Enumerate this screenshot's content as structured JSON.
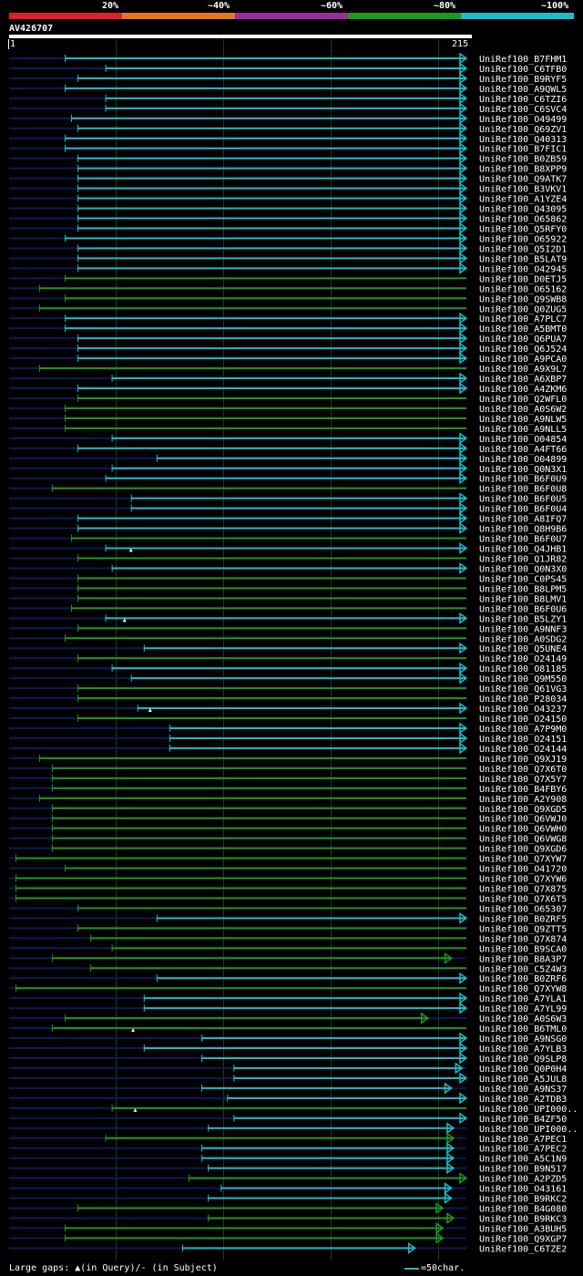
{
  "legend": {
    "labels": [
      "20%",
      "~40%",
      "~60%",
      "~80%",
      "~100%"
    ],
    "colors": [
      "#e2202c",
      "#e6761c",
      "#9a2d9c",
      "#1c9a1c",
      "#1cbcc8"
    ]
  },
  "query": {
    "name": "AV426707",
    "start": "1",
    "end": "215",
    "length": 215
  },
  "footer": {
    "gaps_text": "Large gaps: ▲(in Query)/- (in Subject)",
    "scale_text": "=50char."
  },
  "colors": {
    "cyan": "#1cbcc8",
    "green": "#1c9a1c",
    "dark": "#0d1a5a"
  },
  "hits": [
    {
      "label": "UniRef100_B7FHM1",
      "start": 27,
      "end": 215,
      "color": "cyan",
      "arrow": "right"
    },
    {
      "label": "UniRef100_C6TFB0",
      "start": 46,
      "end": 215,
      "color": "cyan",
      "arrow": "right"
    },
    {
      "label": "UniRef100_B9RYF5",
      "start": 33,
      "end": 215,
      "color": "cyan",
      "arrow": "right"
    },
    {
      "label": "UniRef100_A9QWL5",
      "start": 27,
      "end": 215,
      "color": "cyan",
      "arrow": "right"
    },
    {
      "label": "UniRef100_C6TZI6",
      "start": 46,
      "end": 215,
      "color": "cyan",
      "arrow": "right"
    },
    {
      "label": "UniRef100_C6SVC4",
      "start": 46,
      "end": 215,
      "color": "cyan",
      "arrow": "right"
    },
    {
      "label": "UniRef100_O49499",
      "start": 30,
      "end": 215,
      "color": "cyan",
      "arrow": "right"
    },
    {
      "label": "UniRef100_Q69ZV1",
      "start": 33,
      "end": 215,
      "color": "cyan",
      "arrow": "right"
    },
    {
      "label": "UniRef100_Q40313",
      "start": 27,
      "end": 215,
      "color": "cyan",
      "arrow": "right"
    },
    {
      "label": "UniRef100_B7FIC1",
      "start": 27,
      "end": 215,
      "color": "cyan",
      "arrow": "right"
    },
    {
      "label": "UniRef100_B0ZB59",
      "start": 33,
      "end": 215,
      "color": "cyan",
      "arrow": "right"
    },
    {
      "label": "UniRef100_B8XPP9",
      "start": 33,
      "end": 215,
      "color": "cyan",
      "arrow": "right"
    },
    {
      "label": "UniRef100_Q9ATK7",
      "start": 33,
      "end": 215,
      "color": "cyan",
      "arrow": "right"
    },
    {
      "label": "UniRef100_B3VKV1",
      "start": 33,
      "end": 215,
      "color": "cyan",
      "arrow": "right"
    },
    {
      "label": "UniRef100_A1YZE4",
      "start": 33,
      "end": 215,
      "color": "cyan",
      "arrow": "right"
    },
    {
      "label": "UniRef100_Q43095",
      "start": 33,
      "end": 215,
      "color": "cyan",
      "arrow": "right"
    },
    {
      "label": "UniRef100_O65862",
      "start": 33,
      "end": 215,
      "color": "cyan",
      "arrow": "right"
    },
    {
      "label": "UniRef100_Q5RFY0",
      "start": 33,
      "end": 215,
      "color": "cyan",
      "arrow": "right"
    },
    {
      "label": "UniRef100_O65922",
      "start": 27,
      "end": 215,
      "color": "cyan",
      "arrow": "right"
    },
    {
      "label": "UniRef100_Q5I2D1",
      "start": 33,
      "end": 215,
      "color": "cyan",
      "arrow": "right"
    },
    {
      "label": "UniRef100_B5LAT9",
      "start": 33,
      "end": 215,
      "color": "cyan",
      "arrow": "right"
    },
    {
      "label": "UniRef100_O42945",
      "start": 33,
      "end": 215,
      "color": "cyan",
      "arrow": "right"
    },
    {
      "label": "UniRef100_D0ETJ5",
      "start": 27,
      "end": 215,
      "color": "green",
      "arrow": "none"
    },
    {
      "label": "UniRef100_O65162",
      "start": 15,
      "end": 215,
      "color": "green",
      "arrow": "none"
    },
    {
      "label": "UniRef100_Q9SWB8",
      "start": 27,
      "end": 215,
      "color": "green",
      "arrow": "none"
    },
    {
      "label": "UniRef100_Q0ZUG5",
      "start": 15,
      "end": 215,
      "color": "green",
      "arrow": "none"
    },
    {
      "label": "UniRef100_A7PLC7",
      "start": 27,
      "end": 215,
      "color": "cyan",
      "arrow": "right"
    },
    {
      "label": "UniRef100_A5BMT0",
      "start": 27,
      "end": 215,
      "color": "cyan",
      "arrow": "right"
    },
    {
      "label": "UniRef100_Q6PUA7",
      "start": 33,
      "end": 215,
      "color": "cyan",
      "arrow": "right"
    },
    {
      "label": "UniRef100_Q6J524",
      "start": 33,
      "end": 215,
      "color": "cyan",
      "arrow": "right"
    },
    {
      "label": "UniRef100_A9PCA0",
      "start": 33,
      "end": 215,
      "color": "cyan",
      "arrow": "right"
    },
    {
      "label": "UniRef100_A9X9L7",
      "start": 15,
      "end": 215,
      "color": "green",
      "arrow": "none"
    },
    {
      "label": "UniRef100_A6XBP7",
      "start": 49,
      "end": 215,
      "color": "cyan",
      "arrow": "right"
    },
    {
      "label": "UniRef100_A4ZKM6",
      "start": 33,
      "end": 215,
      "color": "cyan",
      "arrow": "right"
    },
    {
      "label": "UniRef100_Q2WFL0",
      "start": 33,
      "end": 215,
      "color": "green",
      "arrow": "none"
    },
    {
      "label": "UniRef100_A0S6W2",
      "start": 27,
      "end": 215,
      "color": "green",
      "arrow": "none"
    },
    {
      "label": "UniRef100_A9NLW5",
      "start": 27,
      "end": 215,
      "color": "green",
      "arrow": "none"
    },
    {
      "label": "UniRef100_A9NLL5",
      "start": 27,
      "end": 215,
      "color": "green",
      "arrow": "none"
    },
    {
      "label": "UniRef100_O04854",
      "start": 49,
      "end": 215,
      "color": "cyan",
      "arrow": "right"
    },
    {
      "label": "UniRef100_A4FT66",
      "start": 33,
      "end": 215,
      "color": "cyan",
      "arrow": "right"
    },
    {
      "label": "UniRef100_O04899",
      "start": 70,
      "end": 215,
      "color": "cyan",
      "arrow": "right"
    },
    {
      "label": "UniRef100_Q0N3X1",
      "start": 49,
      "end": 215,
      "color": "cyan",
      "arrow": "right"
    },
    {
      "label": "UniRef100_B6F0U9",
      "start": 46,
      "end": 215,
      "color": "cyan",
      "arrow": "right"
    },
    {
      "label": "UniRef100_B6F0U8",
      "start": 21,
      "end": 215,
      "color": "green",
      "arrow": "none"
    },
    {
      "label": "UniRef100_B6F0U5",
      "start": 58,
      "end": 215,
      "color": "cyan",
      "arrow": "right"
    },
    {
      "label": "UniRef100_B6F0U4",
      "start": 58,
      "end": 215,
      "color": "cyan",
      "arrow": "right"
    },
    {
      "label": "UniRef100_A8IFQ7",
      "start": 33,
      "end": 215,
      "color": "cyan",
      "arrow": "right"
    },
    {
      "label": "UniRef100_Q8H9B6",
      "start": 33,
      "end": 215,
      "color": "cyan",
      "arrow": "right"
    },
    {
      "label": "UniRef100_B6F0U7",
      "start": 30,
      "end": 215,
      "color": "green",
      "arrow": "none"
    },
    {
      "label": "UniRef100_Q4JHB1",
      "start": 46,
      "end": 215,
      "color": "cyan",
      "arrow": "right",
      "gap": 58
    },
    {
      "label": "UniRef100_Q1JR82",
      "start": 33,
      "end": 215,
      "color": "green",
      "arrow": "none"
    },
    {
      "label": "UniRef100_Q0N3X0",
      "start": 49,
      "end": 215,
      "color": "cyan",
      "arrow": "right"
    },
    {
      "label": "UniRef100_C0PS45",
      "start": 33,
      "end": 215,
      "color": "green",
      "arrow": "none"
    },
    {
      "label": "UniRef100_B8LPM5",
      "start": 33,
      "end": 215,
      "color": "green",
      "arrow": "none"
    },
    {
      "label": "UniRef100_B8LMV1",
      "start": 33,
      "end": 215,
      "color": "green",
      "arrow": "none"
    },
    {
      "label": "UniRef100_B6F0U6",
      "start": 30,
      "end": 215,
      "color": "green",
      "arrow": "none"
    },
    {
      "label": "UniRef100_B5LZY1",
      "start": 46,
      "end": 215,
      "color": "cyan",
      "arrow": "right",
      "gap": 55
    },
    {
      "label": "UniRef100_A9NNF3",
      "start": 33,
      "end": 215,
      "color": "green",
      "arrow": "none"
    },
    {
      "label": "UniRef100_A0SDG2",
      "start": 27,
      "end": 215,
      "color": "green",
      "arrow": "none"
    },
    {
      "label": "UniRef100_Q5UNE4",
      "start": 64,
      "end": 215,
      "color": "cyan",
      "arrow": "right"
    },
    {
      "label": "UniRef100_O24149",
      "start": 33,
      "end": 215,
      "color": "green",
      "arrow": "none"
    },
    {
      "label": "UniRef100_O81185",
      "start": 49,
      "end": 215,
      "color": "cyan",
      "arrow": "right"
    },
    {
      "label": "UniRef100_Q9M550",
      "start": 58,
      "end": 215,
      "color": "cyan",
      "arrow": "right"
    },
    {
      "label": "UniRef100_Q61VG3",
      "start": 33,
      "end": 215,
      "color": "green",
      "arrow": "none"
    },
    {
      "label": "UniRef100_P28034",
      "start": 33,
      "end": 215,
      "color": "green",
      "arrow": "none"
    },
    {
      "label": "UniRef100_O43237",
      "start": 61,
      "end": 215,
      "color": "cyan",
      "arrow": "right",
      "gap": 67
    },
    {
      "label": "UniRef100_O24150",
      "start": 33,
      "end": 215,
      "color": "green",
      "arrow": "none"
    },
    {
      "label": "UniRef100_A7P9M0",
      "start": 76,
      "end": 215,
      "color": "cyan",
      "arrow": "right"
    },
    {
      "label": "UniRef100_O24151",
      "start": 76,
      "end": 215,
      "color": "cyan",
      "arrow": "right"
    },
    {
      "label": "UniRef100_O24144",
      "start": 76,
      "end": 215,
      "color": "cyan",
      "arrow": "right"
    },
    {
      "label": "UniRef100_Q9XJ19",
      "start": 15,
      "end": 215,
      "color": "green",
      "arrow": "none"
    },
    {
      "label": "UniRef100_Q7X6T0",
      "start": 21,
      "end": 215,
      "color": "green",
      "arrow": "none"
    },
    {
      "label": "UniRef100_Q7X5Y7",
      "start": 21,
      "end": 215,
      "color": "green",
      "arrow": "none"
    },
    {
      "label": "UniRef100_B4FBY6",
      "start": 21,
      "end": 215,
      "color": "green",
      "arrow": "none"
    },
    {
      "label": "UniRef100_A2Y908",
      "start": 15,
      "end": 215,
      "color": "green",
      "arrow": "none"
    },
    {
      "label": "UniRef100_Q9XGD5",
      "start": 21,
      "end": 215,
      "color": "green",
      "arrow": "none"
    },
    {
      "label": "UniRef100_Q6VWJ0",
      "start": 21,
      "end": 215,
      "color": "green",
      "arrow": "none"
    },
    {
      "label": "UniRef100_Q6VWH0",
      "start": 21,
      "end": 215,
      "color": "green",
      "arrow": "none"
    },
    {
      "label": "UniRef100_Q6VWG8",
      "start": 21,
      "end": 215,
      "color": "green",
      "arrow": "none"
    },
    {
      "label": "UniRef100_Q9XGD6",
      "start": 21,
      "end": 215,
      "color": "green",
      "arrow": "none"
    },
    {
      "label": "UniRef100_Q7XYW7",
      "start": 4,
      "end": 215,
      "color": "green",
      "arrow": "none"
    },
    {
      "label": "UniRef100_O41720",
      "start": 27,
      "end": 215,
      "color": "green",
      "arrow": "none"
    },
    {
      "label": "UniRef100_Q7XYW6",
      "start": 4,
      "end": 215,
      "color": "green",
      "arrow": "none"
    },
    {
      "label": "UniRef100_Q7X875",
      "start": 4,
      "end": 215,
      "color": "green",
      "arrow": "none"
    },
    {
      "label": "UniRef100_Q7X6T5",
      "start": 4,
      "end": 215,
      "color": "green",
      "arrow": "none"
    },
    {
      "label": "UniRef100_O65307",
      "start": 33,
      "end": 215,
      "color": "green",
      "arrow": "none"
    },
    {
      "label": "UniRef100_B0ZRF5",
      "start": 70,
      "end": 215,
      "color": "cyan",
      "arrow": "right"
    },
    {
      "label": "UniRef100_Q9ZTT5",
      "start": 33,
      "end": 215,
      "color": "green",
      "arrow": "none"
    },
    {
      "label": "UniRef100_Q7X874",
      "start": 39,
      "end": 215,
      "color": "green",
      "arrow": "none"
    },
    {
      "label": "UniRef100_B9SCA0",
      "start": 49,
      "end": 215,
      "color": "green",
      "arrow": "none"
    },
    {
      "label": "UniRef100_B8A3P7",
      "start": 21,
      "end": 208,
      "color": "green",
      "arrow": "right"
    },
    {
      "label": "UniRef100_C5Z4W3",
      "start": 39,
      "end": 215,
      "color": "green",
      "arrow": "none"
    },
    {
      "label": "UniRef100_B0ZRF6",
      "start": 70,
      "end": 215,
      "color": "cyan",
      "arrow": "right"
    },
    {
      "label": "UniRef100_Q7XYW8",
      "start": 4,
      "end": 215,
      "color": "green",
      "arrow": "none"
    },
    {
      "label": "UniRef100_A7YLA1",
      "start": 64,
      "end": 215,
      "color": "cyan",
      "arrow": "right"
    },
    {
      "label": "UniRef100_A7YL99",
      "start": 64,
      "end": 215,
      "color": "cyan",
      "arrow": "right"
    },
    {
      "label": "UniRef100_A0S6W3",
      "start": 27,
      "end": 197,
      "color": "green",
      "arrow": "right"
    },
    {
      "label": "UniRef100_B6TML0",
      "start": 21,
      "end": 215,
      "color": "green",
      "arrow": "none",
      "gap": 59
    },
    {
      "label": "UniRef100_A9NSG0",
      "start": 91,
      "end": 215,
      "color": "cyan",
      "arrow": "right"
    },
    {
      "label": "UniRef100_A7YLB3",
      "start": 64,
      "end": 215,
      "color": "cyan",
      "arrow": "right"
    },
    {
      "label": "UniRef100_Q9SLP8",
      "start": 91,
      "end": 215,
      "color": "cyan",
      "arrow": "right"
    },
    {
      "label": "UniRef100_Q0P0H4",
      "start": 106,
      "end": 213,
      "color": "cyan",
      "arrow": "right"
    },
    {
      "label": "UniRef100_A5JUL8",
      "start": 106,
      "end": 215,
      "color": "cyan",
      "arrow": "right"
    },
    {
      "label": "UniRef100_A9NS37",
      "start": 91,
      "end": 208,
      "color": "cyan",
      "arrow": "right"
    },
    {
      "label": "UniRef100_A2TDB3",
      "start": 103,
      "end": 215,
      "color": "cyan",
      "arrow": "right"
    },
    {
      "label": "UniRef100_UPI000..",
      "start": 49,
      "end": 215,
      "color": "green",
      "arrow": "none",
      "gap": 60
    },
    {
      "label": "UniRef100_B4ZF50",
      "start": 106,
      "end": 215,
      "color": "cyan",
      "arrow": "right"
    },
    {
      "label": "UniRef100_UPI000..",
      "start": 94,
      "end": 209,
      "color": "cyan",
      "arrow": "right"
    },
    {
      "label": "UniRef100_A7PEC1",
      "start": 46,
      "end": 209,
      "color": "green",
      "arrow": "right"
    },
    {
      "label": "UniRef100_A7PEC2",
      "start": 91,
      "end": 209,
      "color": "cyan",
      "arrow": "right"
    },
    {
      "label": "UniRef100_A5C1N9",
      "start": 91,
      "end": 209,
      "color": "cyan",
      "arrow": "right"
    },
    {
      "label": "UniRef100_B9N517",
      "start": 94,
      "end": 209,
      "color": "cyan",
      "arrow": "right"
    },
    {
      "label": "UniRef100_A2PZD5",
      "start": 85,
      "end": 215,
      "color": "green",
      "arrow": "right"
    },
    {
      "label": "UniRef100_O43161",
      "start": 100,
      "end": 208,
      "color": "cyan",
      "arrow": "right"
    },
    {
      "label": "UniRef100_B9RKC2",
      "start": 94,
      "end": 208,
      "color": "cyan",
      "arrow": "right"
    },
    {
      "label": "UniRef100_B4G080",
      "start": 33,
      "end": 204,
      "color": "green",
      "arrow": "right"
    },
    {
      "label": "UniRef100_B9RKC3",
      "start": 94,
      "end": 209,
      "color": "green",
      "arrow": "right"
    },
    {
      "label": "UniRef100_A3BUH5",
      "start": 27,
      "end": 204,
      "color": "green",
      "arrow": "right"
    },
    {
      "label": "UniRef100_Q9XGP7",
      "start": 27,
      "end": 204,
      "color": "green",
      "arrow": "right"
    },
    {
      "label": "UniRef100_C6TZE2",
      "start": 82,
      "end": 191,
      "color": "cyan",
      "arrow": "right"
    }
  ]
}
